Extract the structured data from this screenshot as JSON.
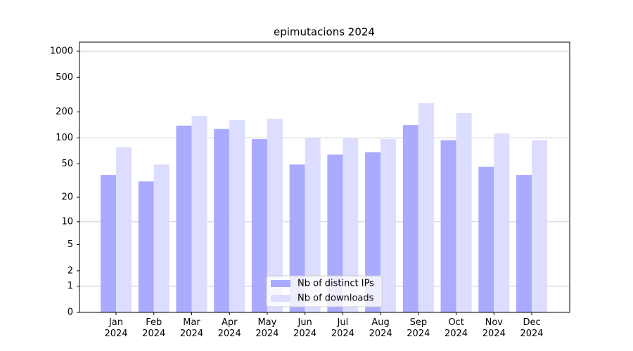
{
  "chart_data": {
    "type": "bar",
    "title": "epimutacions 2024",
    "scale": "log1p",
    "categories": [
      "Jan\n2024",
      "Feb\n2024",
      "Mar\n2024",
      "Apr\n2024",
      "May\n2024",
      "Jun\n2024",
      "Jul\n2024",
      "Aug\n2024",
      "Sep\n2024",
      "Oct\n2024",
      "Nov\n2024",
      "Dec\n2024"
    ],
    "series": [
      {
        "name": "Nb of distinct IPs",
        "color": "#aaaaff",
        "values": [
          37,
          31,
          139,
          127,
          97,
          49,
          64,
          68,
          141,
          94,
          46,
          37
        ]
      },
      {
        "name": "Nb of downloads",
        "color": "#ddddff",
        "values": [
          78,
          49,
          180,
          161,
          167,
          99,
          101,
          97,
          252,
          194,
          113,
          94
        ]
      }
    ],
    "ylim": [
      0,
      1273
    ],
    "yticks": [
      0,
      1,
      2,
      5,
      10,
      20,
      50,
      100,
      200,
      500,
      1000
    ],
    "grid": true,
    "legend": "lower center"
  }
}
